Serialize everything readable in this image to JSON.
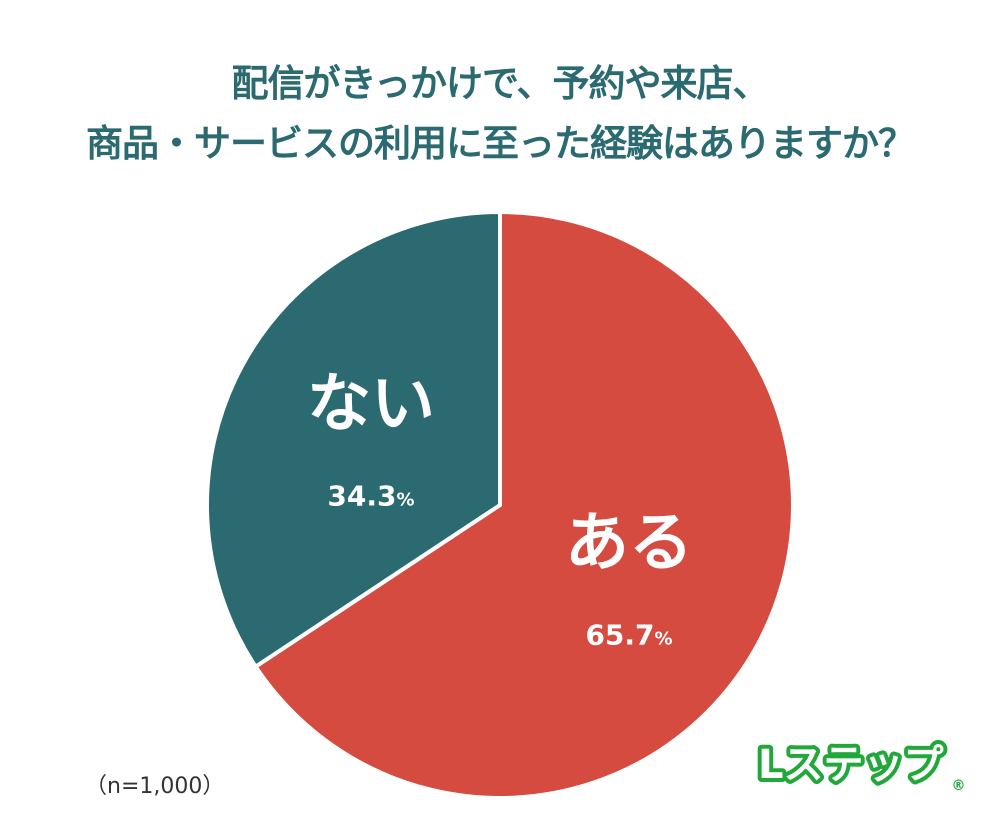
{
  "chart_data": {
    "type": "pie",
    "title": [
      "配信がきっかけで、予約や来店、",
      "商品・サービスの利用に至った経験はありますか？"
    ],
    "slices": [
      {
        "label": "ある",
        "value": 65.7,
        "value_label": "65.7",
        "unit": "%",
        "color": "#d64b40"
      },
      {
        "label": "ない",
        "value": 34.3,
        "value_label": "34.3",
        "unit": "%",
        "color": "#2a6a70"
      }
    ],
    "start": "12 o'clock",
    "direction": "clockwise",
    "legend": "none",
    "note": "（n=1,000）"
  },
  "logo": {
    "text": "Lステップ",
    "mark": "®",
    "color": "#22a83a"
  }
}
